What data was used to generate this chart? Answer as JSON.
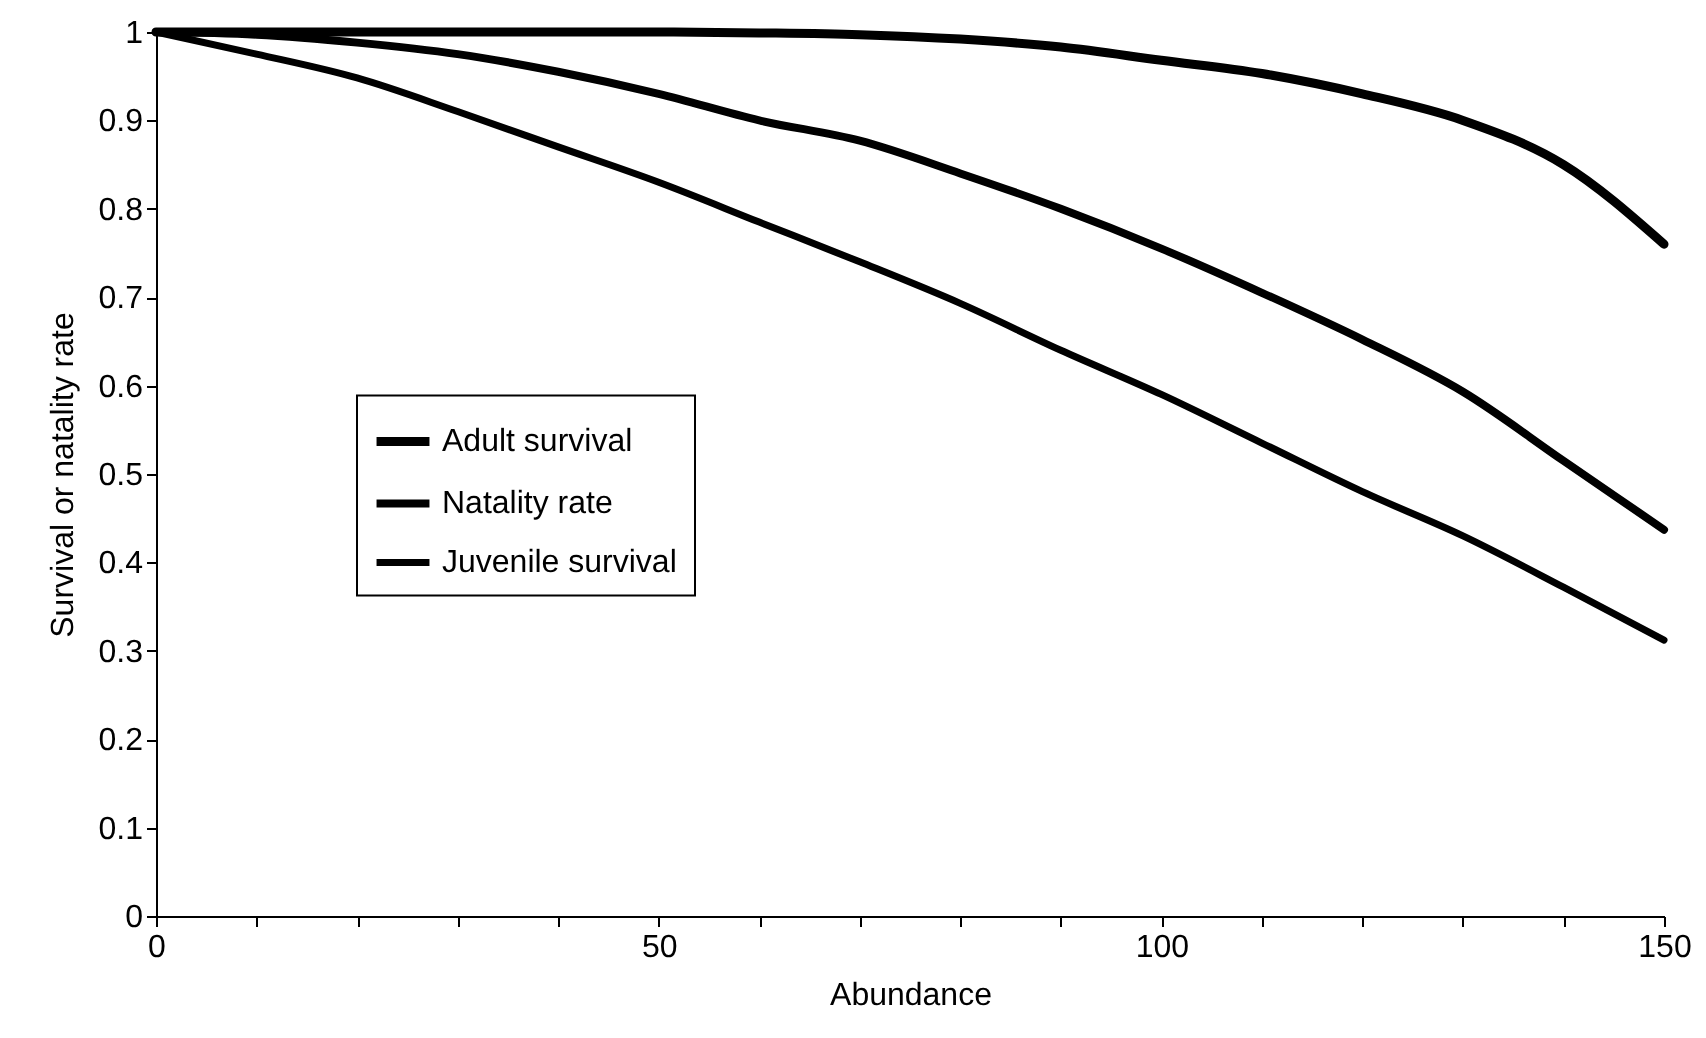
{
  "chart_data": {
    "type": "line",
    "xlabel": "Abundance",
    "ylabel": "Survival or natality rate",
    "x": [
      0,
      10,
      20,
      30,
      40,
      50,
      60,
      70,
      80,
      90,
      100,
      110,
      120,
      130,
      140,
      150
    ],
    "series": [
      {
        "name": "Adult survival",
        "color": "#000000",
        "values": [
          1,
          1,
          1,
          1,
          1,
          1,
          0.999,
          0.997,
          0.992,
          0.983,
          0.968,
          0.953,
          0.93,
          0.9,
          0.85,
          0.76
        ]
      },
      {
        "name": "Natality rate",
        "color": "#000000",
        "values": [
          1,
          0.997,
          0.988,
          0.975,
          0.955,
          0.93,
          0.9,
          0.877,
          0.84,
          0.8,
          0.755,
          0.705,
          0.652,
          0.593,
          0.515,
          0.437
        ]
      },
      {
        "name": "Juvenile survival",
        "color": "#000000",
        "values": [
          1,
          0.975,
          0.948,
          0.91,
          0.87,
          0.83,
          0.785,
          0.74,
          0.693,
          0.64,
          0.59,
          0.535,
          0.48,
          0.43,
          0.372,
          0.312
        ]
      }
    ],
    "xlim": [
      0,
      150
    ],
    "xticks": [
      0,
      {
        "value": 10,
        "label": null
      },
      {
        "value": 20,
        "label": null
      },
      {
        "value": 30,
        "label": null
      },
      {
        "value": 40,
        "label": null
      },
      50,
      {
        "value": 60,
        "label": null
      },
      {
        "value": 70,
        "label": null
      },
      {
        "value": 80,
        "label": null
      },
      {
        "value": 90,
        "label": null
      },
      100,
      {
        "value": 110,
        "label": null
      },
      {
        "value": 120,
        "label": null
      },
      {
        "value": 130,
        "label": null
      },
      {
        "value": 140,
        "label": null
      },
      150
    ],
    "ylim": [
      0,
      1
    ],
    "yticks": [
      0,
      0.1,
      0.2,
      0.3,
      0.4,
      0.5,
      0.6,
      0.7,
      0.8,
      0.9,
      1
    ],
    "legend": "left",
    "grid": false,
    "line_style": "solid"
  }
}
